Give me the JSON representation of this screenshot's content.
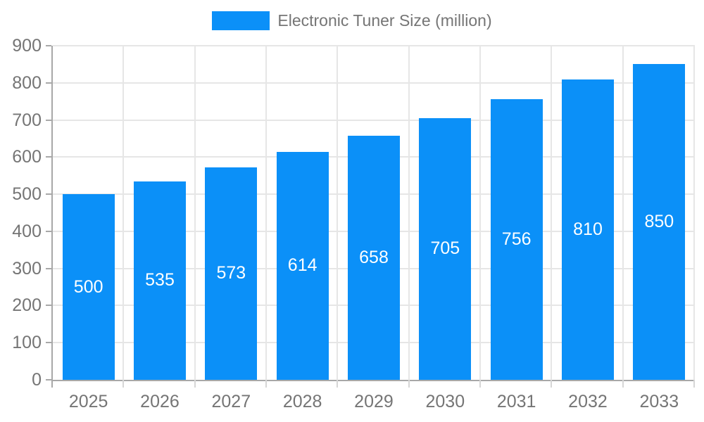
{
  "legend": {
    "label": "Electronic Tuner Size (million)"
  },
  "chart_data": {
    "type": "bar",
    "title": "Electronic Tuner Size (million)",
    "categories": [
      "2025",
      "2026",
      "2027",
      "2028",
      "2029",
      "2030",
      "2031",
      "2032",
      "2033"
    ],
    "values": [
      500,
      535,
      573,
      614,
      658,
      705,
      756,
      810,
      850
    ],
    "xlabel": "",
    "ylabel": "",
    "ylim": [
      0,
      900
    ],
    "ytick_step": 100,
    "grid": true,
    "legend_position": "top-center",
    "bar_labels_inside": true,
    "colors": {
      "bar": "#0b90f8",
      "bar_label": "#ffffff",
      "axis_text": "#757575",
      "axis_line": "#a8a8a8",
      "gridline": "#e6e6e6",
      "boundary_tick": "#d6d6d6",
      "background": "#ffffff"
    }
  }
}
